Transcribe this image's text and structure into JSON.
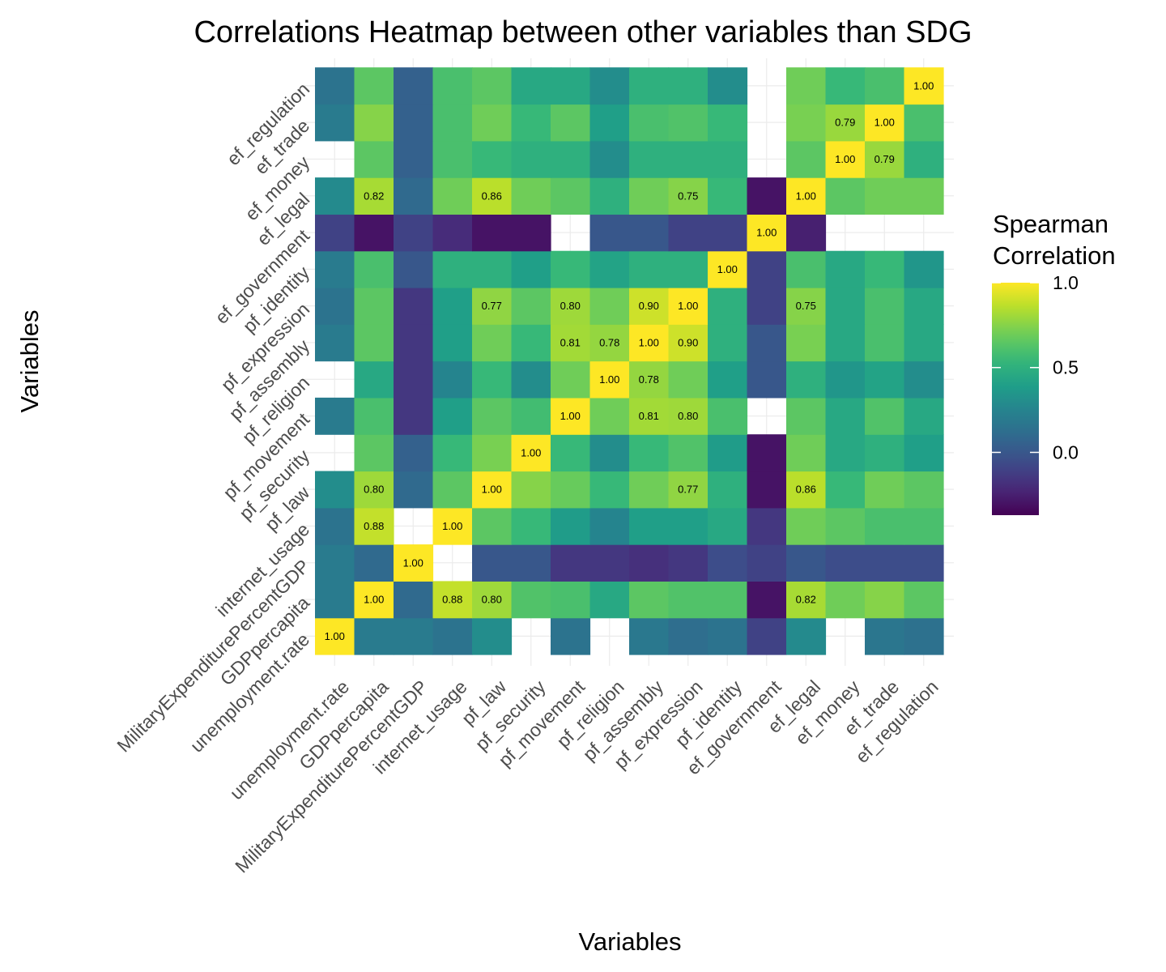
{
  "chart_data": {
    "type": "heatmap",
    "title": "Correlations Heatmap between other variables than SDG",
    "xlabel": "Variables",
    "ylabel": "Variables",
    "variables": [
      "unemployment.rate",
      "GDPpercapita",
      "MilitaryExpenditurePercentGDP",
      "internet_usage",
      "pf_law",
      "pf_security",
      "pf_movement",
      "pf_religion",
      "pf_assembly",
      "pf_expression",
      "pf_identity",
      "ef_government",
      "ef_legal",
      "ef_money",
      "ef_trade",
      "ef_regulation"
    ],
    "note": "matrix rows are ordered bottom to top (row 0 = unemployment.rate); columns left to right; null = missing cell",
    "matrix": [
      [
        1.0,
        0.2,
        0.2,
        0.15,
        0.3,
        null,
        0.15,
        null,
        0.18,
        0.12,
        0.15,
        -0.1,
        0.28,
        null,
        0.17,
        0.14
      ],
      [
        0.2,
        1.0,
        0.1,
        0.88,
        0.8,
        0.62,
        0.6,
        0.45,
        0.65,
        0.62,
        0.62,
        -0.3,
        0.82,
        0.7,
        0.75,
        0.65
      ],
      [
        0.2,
        0.1,
        1.0,
        null,
        0.0,
        0.0,
        -0.15,
        -0.15,
        -0.18,
        -0.15,
        -0.05,
        -0.1,
        0.0,
        -0.05,
        -0.05,
        -0.05
      ],
      [
        0.15,
        0.88,
        null,
        1.0,
        0.65,
        0.55,
        0.38,
        0.25,
        0.4,
        0.4,
        0.45,
        -0.15,
        0.7,
        0.65,
        0.6,
        0.6
      ],
      [
        0.3,
        0.8,
        0.1,
        0.65,
        1.0,
        0.75,
        0.68,
        0.55,
        0.7,
        0.77,
        0.5,
        -0.3,
        0.86,
        0.55,
        0.7,
        0.65
      ],
      [
        null,
        0.65,
        0.05,
        0.55,
        0.72,
        1.0,
        0.55,
        0.3,
        0.55,
        0.62,
        0.38,
        -0.3,
        0.7,
        0.45,
        0.5,
        0.4
      ],
      [
        0.2,
        0.6,
        -0.15,
        0.4,
        0.65,
        0.58,
        1.0,
        0.7,
        0.81,
        0.8,
        0.6,
        null,
        0.65,
        0.45,
        0.62,
        0.45
      ],
      [
        null,
        0.45,
        -0.15,
        0.25,
        0.55,
        0.3,
        0.7,
        1.0,
        0.78,
        0.7,
        0.4,
        0.0,
        0.5,
        0.35,
        0.42,
        0.3
      ],
      [
        0.2,
        0.65,
        -0.15,
        0.4,
        0.7,
        0.55,
        0.81,
        0.78,
        1.0,
        0.9,
        0.5,
        0.0,
        0.72,
        0.45,
        0.6,
        0.45
      ],
      [
        0.15,
        0.65,
        -0.15,
        0.4,
        0.77,
        0.65,
        0.8,
        0.7,
        0.9,
        1.0,
        0.5,
        -0.1,
        0.75,
        0.45,
        0.6,
        0.45
      ],
      [
        0.2,
        0.6,
        0.0,
        0.5,
        0.5,
        0.4,
        0.55,
        0.42,
        0.5,
        0.5,
        1.0,
        -0.1,
        0.6,
        0.45,
        0.55,
        0.35
      ],
      [
        -0.1,
        -0.3,
        -0.1,
        -0.2,
        -0.3,
        -0.3,
        null,
        0.0,
        0.0,
        -0.1,
        -0.1,
        1.0,
        -0.25,
        null,
        null,
        null
      ],
      [
        0.28,
        0.82,
        0.1,
        0.7,
        0.86,
        0.7,
        0.65,
        0.5,
        0.7,
        0.75,
        0.55,
        -0.3,
        1.0,
        0.65,
        0.7,
        0.7
      ],
      [
        null,
        0.65,
        0.05,
        0.6,
        0.55,
        0.5,
        0.5,
        0.3,
        0.5,
        0.5,
        0.5,
        null,
        0.65,
        1.0,
        0.79,
        0.5
      ],
      [
        0.2,
        0.75,
        0.05,
        0.6,
        0.7,
        0.55,
        0.65,
        0.4,
        0.6,
        0.62,
        0.55,
        null,
        0.72,
        0.79,
        1.0,
        0.6
      ],
      [
        0.15,
        0.65,
        0.05,
        0.6,
        0.65,
        0.45,
        0.45,
        0.3,
        0.5,
        0.5,
        0.3,
        null,
        0.7,
        0.55,
        0.6,
        1.0
      ]
    ],
    "cell_labels": [
      {
        "row": 0,
        "col": 0,
        "text": "1.00"
      },
      {
        "row": 1,
        "col": 1,
        "text": "1.00"
      },
      {
        "row": 1,
        "col": 3,
        "text": "0.88"
      },
      {
        "row": 1,
        "col": 4,
        "text": "0.80"
      },
      {
        "row": 1,
        "col": 12,
        "text": "0.82"
      },
      {
        "row": 2,
        "col": 2,
        "text": "1.00"
      },
      {
        "row": 3,
        "col": 1,
        "text": "0.88"
      },
      {
        "row": 3,
        "col": 3,
        "text": "1.00"
      },
      {
        "row": 4,
        "col": 1,
        "text": "0.80"
      },
      {
        "row": 4,
        "col": 4,
        "text": "1.00"
      },
      {
        "row": 4,
        "col": 9,
        "text": "0.77"
      },
      {
        "row": 4,
        "col": 12,
        "text": "0.86"
      },
      {
        "row": 5,
        "col": 5,
        "text": "1.00"
      },
      {
        "row": 6,
        "col": 6,
        "text": "1.00"
      },
      {
        "row": 6,
        "col": 8,
        "text": "0.81"
      },
      {
        "row": 6,
        "col": 9,
        "text": "0.80"
      },
      {
        "row": 7,
        "col": 7,
        "text": "1.00"
      },
      {
        "row": 7,
        "col": 8,
        "text": "0.78"
      },
      {
        "row": 8,
        "col": 6,
        "text": "0.81"
      },
      {
        "row": 8,
        "col": 7,
        "text": "0.78"
      },
      {
        "row": 8,
        "col": 8,
        "text": "1.00"
      },
      {
        "row": 8,
        "col": 9,
        "text": "0.90"
      },
      {
        "row": 9,
        "col": 4,
        "text": "0.77"
      },
      {
        "row": 9,
        "col": 6,
        "text": "0.80"
      },
      {
        "row": 9,
        "col": 8,
        "text": "0.90"
      },
      {
        "row": 9,
        "col": 9,
        "text": "1.00"
      },
      {
        "row": 9,
        "col": 12,
        "text": "0.75"
      },
      {
        "row": 10,
        "col": 10,
        "text": "1.00"
      },
      {
        "row": 11,
        "col": 11,
        "text": "1.00"
      },
      {
        "row": 12,
        "col": 1,
        "text": "0.82"
      },
      {
        "row": 12,
        "col": 4,
        "text": "0.86"
      },
      {
        "row": 12,
        "col": 9,
        "text": "0.75"
      },
      {
        "row": 12,
        "col": 12,
        "text": "1.00"
      },
      {
        "row": 13,
        "col": 13,
        "text": "1.00"
      },
      {
        "row": 13,
        "col": 14,
        "text": "0.79"
      },
      {
        "row": 14,
        "col": 13,
        "text": "0.79"
      },
      {
        "row": 14,
        "col": 14,
        "text": "1.00"
      },
      {
        "row": 15,
        "col": 15,
        "text": "1.00"
      }
    ],
    "legend": {
      "title_lines": [
        "Spearman",
        "Correlation"
      ],
      "ticks": [
        {
          "value": 1.0,
          "label": "1.0"
        },
        {
          "value": 0.5,
          "label": "0.5"
        },
        {
          "value": 0.0,
          "label": "0.0"
        }
      ],
      "range": [
        -0.37,
        1.0
      ],
      "palette": "viridis",
      "placement": "right"
    },
    "grid": true
  }
}
